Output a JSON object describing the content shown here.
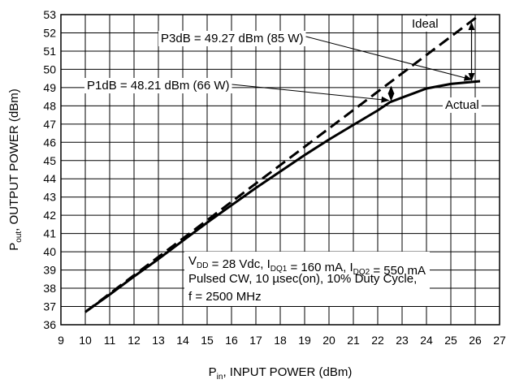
{
  "chart_data": {
    "type": "line",
    "title": "",
    "xlabel": {
      "main": "P",
      "sub": "in",
      "rest": ", INPUT POWER (dBm)"
    },
    "ylabel": {
      "main": "P",
      "sub": "out",
      "rest": ", OUTPUT POWER (dBm)"
    },
    "xlim": [
      9,
      27
    ],
    "ylim": [
      36,
      53
    ],
    "x_ticks": [
      9,
      10,
      11,
      12,
      13,
      14,
      15,
      16,
      17,
      18,
      19,
      20,
      21,
      22,
      23,
      24,
      25,
      26,
      27
    ],
    "y_ticks": [
      36,
      37,
      38,
      39,
      40,
      41,
      42,
      43,
      44,
      45,
      46,
      47,
      48,
      49,
      50,
      51,
      52,
      53
    ],
    "grid": true,
    "series": [
      {
        "name": "Ideal",
        "style": "dashed",
        "x": [
          10,
          26.2
        ],
        "y": [
          36.7,
          53.0
        ]
      },
      {
        "name": "Actual",
        "style": "solid",
        "x": [
          10,
          11,
          12,
          13,
          14,
          15,
          16,
          17,
          18,
          19,
          20,
          21,
          22,
          22.5,
          23,
          24,
          25,
          26.2
        ],
        "y": [
          36.7,
          37.65,
          38.65,
          39.6,
          40.6,
          41.6,
          42.55,
          43.5,
          44.4,
          45.3,
          46.15,
          46.95,
          47.75,
          48.2,
          48.45,
          48.95,
          49.2,
          49.35
        ]
      }
    ],
    "annotations": {
      "p3db": "P3dB = 49.27 dBm (85 W)",
      "p1db": "P1dB = 48.21 dBm (66 W)",
      "ideal_label": "Ideal",
      "actual_label": "Actual",
      "conditions": [
        {
          "segments": [
            {
              "t": "V"
            },
            {
              "t": "DD",
              "sub": true
            },
            {
              "t": " = 28 Vdc, I"
            },
            {
              "t": "DQ1",
              "sub": true
            },
            {
              "t": " = 160 mA, I"
            },
            {
              "t": "DQ2",
              "sub": true
            },
            {
              "t": " = 550 mA"
            }
          ]
        },
        {
          "segments": [
            {
              "t": "Pulsed CW, 10 µsec(on), 10% Duty Cycle,"
            }
          ]
        },
        {
          "segments": [
            {
              "t": "f = 2500 MHz"
            }
          ]
        }
      ]
    },
    "colors": {
      "line": "#000000",
      "grid": "#000000",
      "background": "#ffffff"
    }
  }
}
